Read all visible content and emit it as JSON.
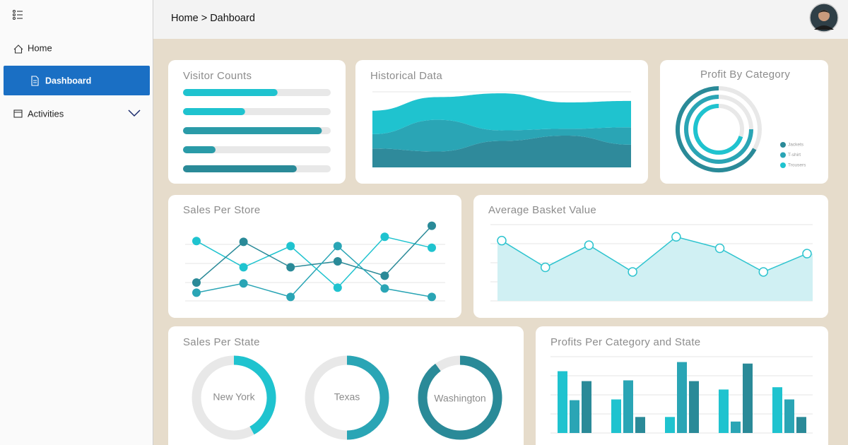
{
  "sidebar": {
    "items": [
      {
        "label": "Home"
      },
      {
        "label": "Dashboard"
      },
      {
        "label": "Activities"
      }
    ]
  },
  "header": {
    "breadcrumb": "Home > Dahboard"
  },
  "cards": {
    "visitor_counts": {
      "type": "bar",
      "title": "Visitor Counts",
      "xlim": [
        0,
        100
      ],
      "values": [
        64,
        42,
        94,
        22,
        77
      ],
      "colors": [
        "#1fc3cf",
        "#1fc3cf",
        "#2a9ba8",
        "#2a9ba8",
        "#2a8a98"
      ]
    },
    "historical_data": {
      "type": "stacked-area",
      "title": "Historical Data",
      "ylim": [
        0,
        100
      ],
      "series": [
        {
          "color": "#2f8a9b",
          "values": [
            25,
            21,
            35,
            42,
            30
          ]
        },
        {
          "color": "#2aa5b5",
          "values": [
            19,
            42,
            14,
            9,
            23
          ]
        },
        {
          "color": "#1fc3cf",
          "values": [
            31,
            30,
            49,
            35,
            35
          ]
        }
      ]
    },
    "profit_by_category": {
      "type": "radial",
      "title": "Profit By Category",
      "series": [
        {
          "name": "Jackets",
          "color": "#2a8a98",
          "value": 67
        },
        {
          "name": "T-shirt",
          "color": "#2aa5b5",
          "value": 75
        },
        {
          "name": "Trousers",
          "color": "#1fc3cf",
          "value": 70
        }
      ]
    },
    "sales_per_store": {
      "type": "line",
      "title": "Sales Per Store",
      "ylim": [
        0,
        100
      ],
      "series": [
        {
          "color": "#1fc3cf",
          "values": [
            74,
            43,
            68,
            19,
            79,
            66
          ]
        },
        {
          "color": "#2a8a98",
          "values": [
            25,
            73,
            43,
            50,
            33,
            92
          ]
        },
        {
          "color": "#2aa5b5",
          "values": [
            13,
            24,
            8,
            68,
            18,
            8
          ]
        }
      ]
    },
    "average_basket_value": {
      "type": "area",
      "title": "Average Basket Value",
      "ylim": [
        0,
        100
      ],
      "color": "#2ec4cf",
      "values": [
        79,
        44,
        73,
        38,
        84,
        69,
        38,
        62
      ]
    },
    "sales_per_state": {
      "type": "donut",
      "title": "Sales Per State",
      "categories": [
        "New York",
        "Texas",
        "Washington"
      ],
      "values": [
        42,
        50,
        90
      ],
      "colors": [
        "#1fc3cf",
        "#2aa5b5",
        "#2a8a98"
      ]
    },
    "profits_per_category_and_state": {
      "type": "grouped-bar",
      "title": "Profits Per Category and State",
      "ylim": [
        0,
        100
      ],
      "series": [
        {
          "color": "#1fc3cf",
          "values": [
            81,
            44,
            21,
            57,
            60
          ]
        },
        {
          "color": "#2aa5b5",
          "values": [
            43,
            69,
            93,
            15,
            44
          ]
        },
        {
          "color": "#2a8a98",
          "values": [
            68,
            21,
            68,
            91,
            21
          ]
        }
      ]
    }
  }
}
